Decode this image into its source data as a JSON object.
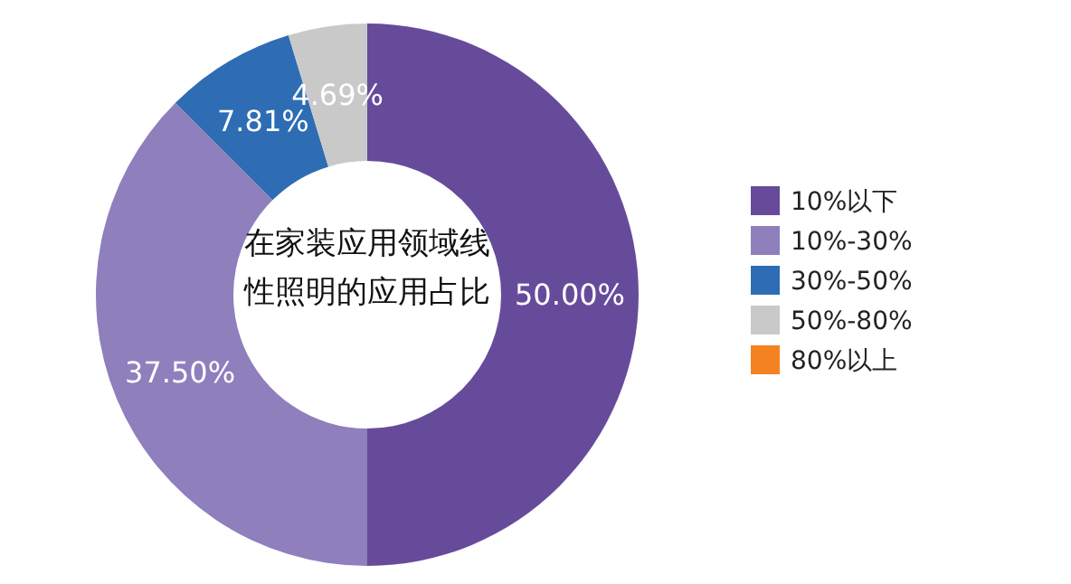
{
  "chart_data": {
    "type": "donut",
    "title": "在家装应用领域线性照明的应用占比",
    "categories": [
      "10%以下",
      "10%-30%",
      "30%-50%",
      "50%-80%",
      "80%以上"
    ],
    "values": [
      50,
      37.5,
      7.81,
      4.69,
      0
    ],
    "value_labels": [
      "50.00%",
      "37.50%",
      "7.81%",
      "4.69%",
      null
    ],
    "colors": [
      "#674b9b",
      "#8f7fbd",
      "#2e6db4",
      "#c9c9c9",
      "#f58220"
    ],
    "legend": "right"
  }
}
